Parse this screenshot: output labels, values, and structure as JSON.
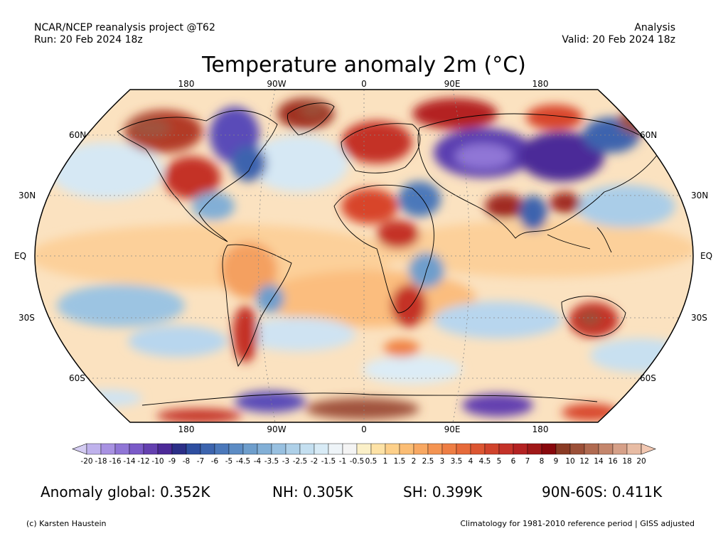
{
  "header": {
    "project": "NCAR/NCEP reanalysis project @T62",
    "run": "Run: 20 Feb 2024 18z",
    "kind": "Analysis",
    "valid": "Valid: 20 Feb 2024 18z"
  },
  "title": "Temperature anomaly 2m (°C)",
  "map": {
    "lon_labels_top": [
      "180",
      "90W",
      "0",
      "90E",
      "180"
    ],
    "lon_labels_bottom": [
      "180",
      "90W",
      "0",
      "90E",
      "180"
    ],
    "lat_labels_left": [
      "60N",
      "30N",
      "EQ",
      "30S",
      "60S"
    ],
    "lat_labels_right": [
      "60N",
      "30N",
      "EQ",
      "30S",
      "60S"
    ]
  },
  "colorbar": {
    "labels": [
      "-20",
      "-18",
      "-16",
      "-14",
      "-12",
      "-10",
      "-9",
      "-8",
      "-7",
      "-6",
      "-5",
      "-4.5",
      "-4",
      "-3.5",
      "-3",
      "-2.5",
      "-2",
      "-1.5",
      "-1",
      "-0.5",
      "0.5",
      "1",
      "1.5",
      "2",
      "2.5",
      "3",
      "3.5",
      "4",
      "4.5",
      "5",
      "6",
      "7",
      "8",
      "9",
      "10",
      "12",
      "14",
      "16",
      "18",
      "20"
    ],
    "colors": [
      "#d4ccf2",
      "#bfb2ec",
      "#a892e2",
      "#9076d6",
      "#7a5ac8",
      "#6440b0",
      "#4c2a98",
      "#2c2f88",
      "#2e4ea0",
      "#3c64ae",
      "#4b78ba",
      "#5c8cc4",
      "#6e9ecc",
      "#82afd6",
      "#98c0e0",
      "#aed0e8",
      "#c4dff0",
      "#d8ebf6",
      "#eef4f8",
      "#f4f4f4",
      "#fbf0c8",
      "#fde2a6",
      "#fdd08a",
      "#fbbd74",
      "#f8a862",
      "#f49452",
      "#ee7e44",
      "#e66a3a",
      "#dc5632",
      "#d0432c",
      "#c43228",
      "#b42222",
      "#a01818",
      "#88080c",
      "#8a3a24",
      "#9c5038",
      "#b06a50",
      "#c4866c",
      "#d6a088",
      "#e8bca4",
      "#f2c8b2"
    ]
  },
  "stats": {
    "global": "Anomaly global: 0.352K",
    "nh": "NH: 0.305K",
    "sh": "SH: 0.399K",
    "arctic": "90N-60S: 0.411K"
  },
  "footer": {
    "credit": "(c) Karsten Haustein",
    "note": "Climatology for 1981-2010 reference period | GISS adjusted"
  }
}
